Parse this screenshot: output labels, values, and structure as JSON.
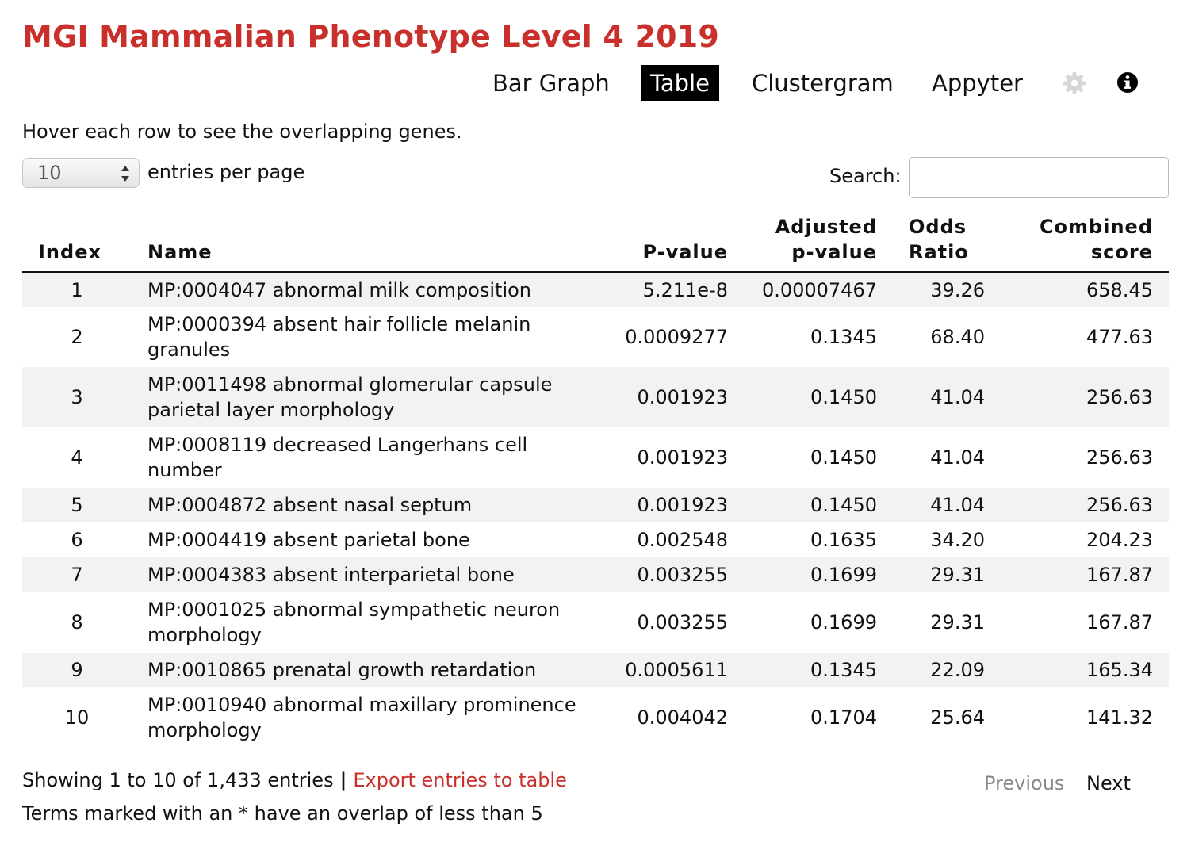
{
  "title": "MGI Mammalian Phenotype Level 4 2019",
  "nav": {
    "bar_graph": "Bar Graph",
    "table": "Table",
    "clustergram": "Clustergram",
    "appyter": "Appyter",
    "settings_icon": "gear-icon",
    "info_icon": "info-icon"
  },
  "hint": "Hover each row to see the overlapping genes.",
  "page_size": {
    "value": "10",
    "label": "entries per page"
  },
  "search": {
    "label": "Search:",
    "value": ""
  },
  "table": {
    "headers": {
      "index": "Index",
      "name": "Name",
      "pvalue": "P-value",
      "adjusted_1": "Adjusted",
      "adjusted_2": "p-value",
      "odds_1": "Odds",
      "odds_2": "Ratio",
      "combined_1": "Combined",
      "combined_2": "score"
    },
    "rows": [
      {
        "index": "1",
        "name": "MP:0004047 abnormal milk composition",
        "pvalue": "5.211e-8",
        "adj": "0.00007467",
        "odds": "39.26",
        "combined": "658.45"
      },
      {
        "index": "2",
        "name": "MP:0000394 absent hair follicle melanin granules",
        "pvalue": "0.0009277",
        "adj": "0.1345",
        "odds": "68.40",
        "combined": "477.63"
      },
      {
        "index": "3",
        "name": "MP:0011498 abnormal glomerular capsule parietal layer morphology",
        "pvalue": "0.001923",
        "adj": "0.1450",
        "odds": "41.04",
        "combined": "256.63"
      },
      {
        "index": "4",
        "name": "MP:0008119 decreased Langerhans cell number",
        "pvalue": "0.001923",
        "adj": "0.1450",
        "odds": "41.04",
        "combined": "256.63"
      },
      {
        "index": "5",
        "name": "MP:0004872 absent nasal septum",
        "pvalue": "0.001923",
        "adj": "0.1450",
        "odds": "41.04",
        "combined": "256.63"
      },
      {
        "index": "6",
        "name": "MP:0004419 absent parietal bone",
        "pvalue": "0.002548",
        "adj": "0.1635",
        "odds": "34.20",
        "combined": "204.23"
      },
      {
        "index": "7",
        "name": "MP:0004383 absent interparietal bone",
        "pvalue": "0.003255",
        "adj": "0.1699",
        "odds": "29.31",
        "combined": "167.87"
      },
      {
        "index": "8",
        "name": "MP:0001025 abnormal sympathetic neuron morphology",
        "pvalue": "0.003255",
        "adj": "0.1699",
        "odds": "29.31",
        "combined": "167.87"
      },
      {
        "index": "9",
        "name": "MP:0010865 prenatal growth retardation",
        "pvalue": "0.0005611",
        "adj": "0.1345",
        "odds": "22.09",
        "combined": "165.34"
      },
      {
        "index": "10",
        "name": "MP:0010940 abnormal maxillary prominence morphology",
        "pvalue": "0.004042",
        "adj": "0.1704",
        "odds": "25.64",
        "combined": "141.32"
      }
    ]
  },
  "footer": {
    "showing": "Showing 1 to 10 of 1,433 entries",
    "separator": "|",
    "export": "Export entries to table",
    "note": "Terms marked with an * have an overlap of less than 5",
    "previous": "Previous",
    "next": "Next"
  },
  "colors": {
    "title_red": "#c9302c",
    "active_tab_bg": "#000000",
    "stripe": "#f2f2f2",
    "disabled_pager": "#888888"
  }
}
